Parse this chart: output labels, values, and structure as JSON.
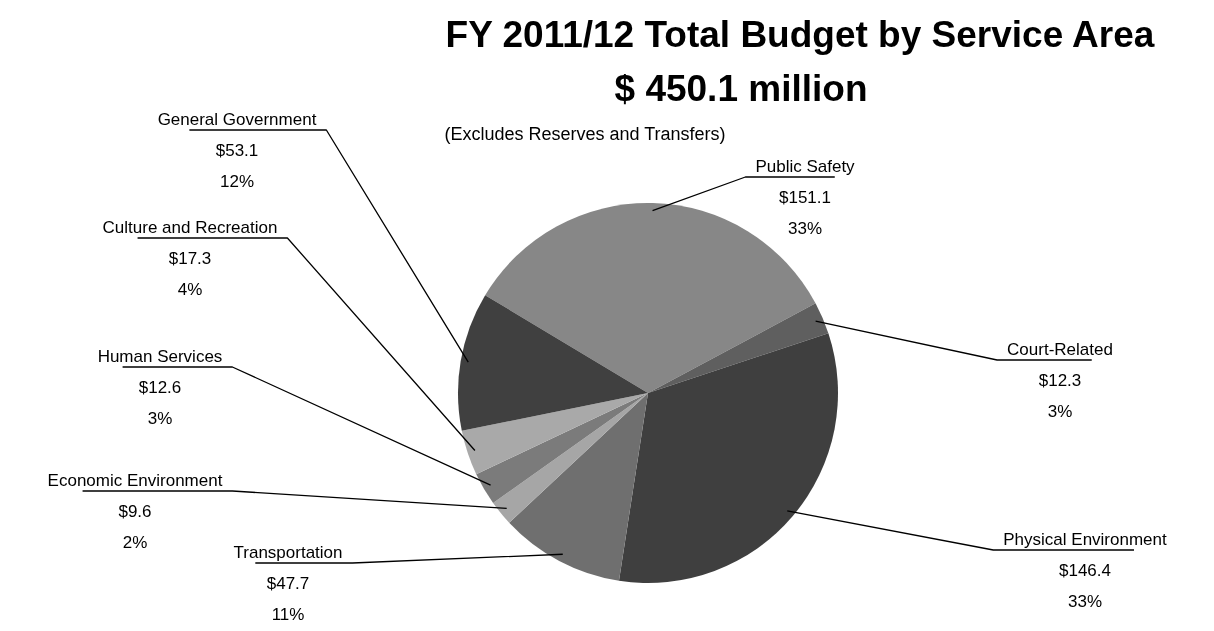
{
  "chart_data": {
    "type": "pie",
    "title": "FY 2011/12 Total Budget by Service Area",
    "subtitle": "$ 450.1 million",
    "annotations": [
      "(Excludes Reserves and Transfers)"
    ],
    "categories": [
      "Public Safety",
      "Court-Related",
      "Physical Environment",
      "Transportation",
      "Economic Environment",
      "Human Services",
      "Culture and Recreation",
      "General Government"
    ],
    "values": [
      151.1,
      12.3,
      146.4,
      47.7,
      9.6,
      12.6,
      17.3,
      53.1
    ],
    "value_labels": [
      "$151.1\n33%",
      "$12.3\n3%",
      "$146.4\n33%",
      "$47.7\n11%",
      "$9.6\n2%",
      "$12.6\n3%",
      "$17.3\n4%",
      "$53.1\n12%"
    ],
    "colors": [
      "#878787",
      "#5f5f5f",
      "#3f3f3f",
      "#6f6f6f",
      "#a6a6a6",
      "#7b7b7b",
      "#a9a9a9",
      "#404040"
    ]
  }
}
